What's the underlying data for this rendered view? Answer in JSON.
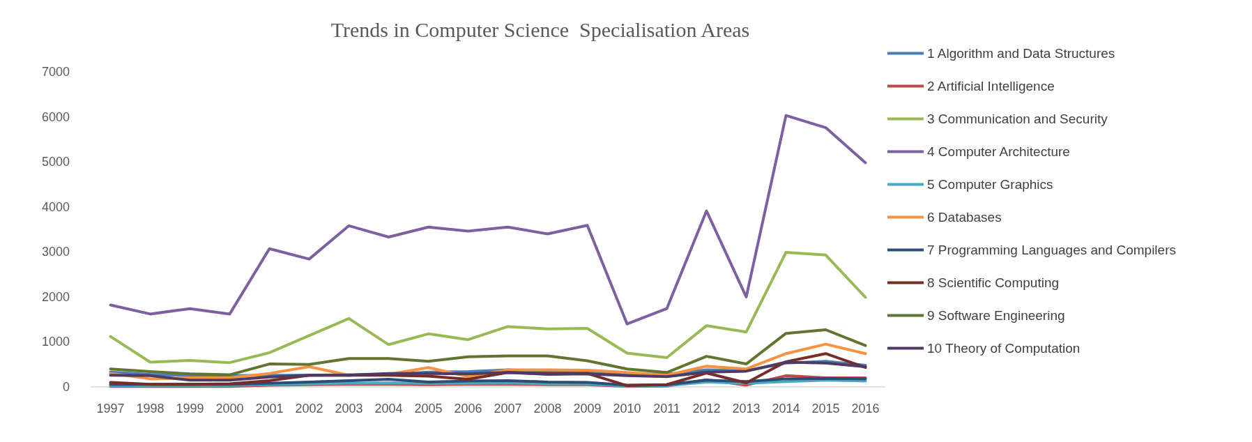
{
  "chart_data": {
    "type": "line",
    "title": "Trends in Computer Science  Specialisation Areas",
    "categories": [
      "1997",
      "1998",
      "1999",
      "2000",
      "2001",
      "2002",
      "2003",
      "2004",
      "2005",
      "2006",
      "2007",
      "2008",
      "2009",
      "2010",
      "2011",
      "2012",
      "2013",
      "2014",
      "2015",
      "2016"
    ],
    "ylim": [
      0,
      7000
    ],
    "yticks": [
      0,
      1000,
      2000,
      3000,
      4000,
      5000,
      6000,
      7000
    ],
    "grid": false,
    "legend": "right",
    "marker": "none",
    "line_style": "solid",
    "series": [
      {
        "name": "1 Algorithm and Data Structures",
        "color": "#4a7ebb",
        "values": [
          330,
          280,
          250,
          250,
          260,
          260,
          270,
          280,
          330,
          340,
          380,
          340,
          330,
          300,
          280,
          380,
          360,
          530,
          570,
          480
        ]
      },
      {
        "name": "2 Artificial Intelligence",
        "color": "#be4b48",
        "values": [
          10,
          10,
          10,
          10,
          40,
          50,
          60,
          60,
          50,
          60,
          60,
          50,
          50,
          10,
          20,
          160,
          40,
          250,
          200,
          200
        ]
      },
      {
        "name": "3 Communication and Security",
        "color": "#98b954",
        "values": [
          1120,
          550,
          590,
          540,
          760,
          1140,
          1520,
          940,
          1180,
          1050,
          1340,
          1290,
          1300,
          750,
          650,
          1360,
          1220,
          2990,
          2930,
          1990
        ]
      },
      {
        "name": "4 Computer Architecture",
        "color": "#7d60a0",
        "values": [
          1820,
          1620,
          1740,
          1620,
          3070,
          2840,
          3580,
          3330,
          3550,
          3460,
          3550,
          3400,
          3590,
          1400,
          1740,
          3910,
          2000,
          6030,
          5760,
          4980
        ]
      },
      {
        "name": "5 Computer Graphics",
        "color": "#46aac5",
        "values": [
          30,
          30,
          30,
          30,
          60,
          70,
          80,
          90,
          80,
          80,
          90,
          70,
          70,
          20,
          30,
          110,
          80,
          120,
          150,
          130
        ]
      },
      {
        "name": "6 Databases",
        "color": "#f69240",
        "values": [
          300,
          180,
          200,
          200,
          300,
          450,
          260,
          280,
          430,
          230,
          380,
          380,
          370,
          320,
          260,
          460,
          400,
          740,
          950,
          740
        ]
      },
      {
        "name": "7 Programming Languages and Compilers",
        "color": "#2c4d75",
        "values": [
          60,
          60,
          60,
          60,
          80,
          110,
          140,
          170,
          110,
          130,
          140,
          110,
          100,
          40,
          50,
          150,
          120,
          180,
          190,
          180
        ]
      },
      {
        "name": "8 Scientific Computing",
        "color": "#772c2a",
        "values": [
          100,
          60,
          60,
          70,
          140,
          260,
          260,
          260,
          240,
          170,
          320,
          300,
          300,
          30,
          50,
          310,
          90,
          560,
          740,
          430
        ]
      },
      {
        "name": "9 Software Engineering",
        "color": "#5f7530",
        "values": [
          400,
          340,
          290,
          270,
          510,
          500,
          630,
          630,
          570,
          670,
          690,
          690,
          580,
          400,
          320,
          680,
          510,
          1190,
          1270,
          920
        ]
      },
      {
        "name": "10 Theory of Computation",
        "color": "#4d3b62",
        "values": [
          260,
          250,
          150,
          150,
          220,
          260,
          260,
          300,
          300,
          290,
          320,
          280,
          290,
          250,
          230,
          330,
          350,
          550,
          530,
          450
        ]
      }
    ]
  }
}
